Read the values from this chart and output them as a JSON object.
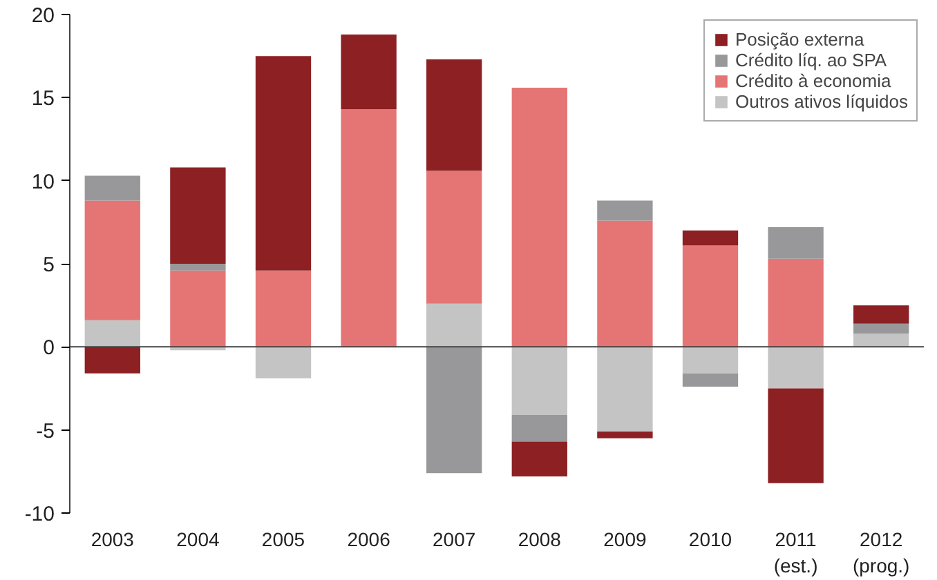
{
  "chart_data": {
    "type": "bar",
    "stacked": true,
    "categories": [
      "2003",
      "2004",
      "2005",
      "2006",
      "2007",
      "2008",
      "2009",
      "2010",
      "2011\n(est.)",
      "2012\n(prog.)"
    ],
    "series": [
      {
        "name": "Outros ativos líquidos",
        "color": "#c4c4c4",
        "values": [
          1.6,
          -0.2,
          -1.9,
          0,
          2.6,
          -4.1,
          -5.1,
          -1.6,
          -2.5,
          0.8
        ]
      },
      {
        "name": "Crédito à economia",
        "color": "#e57575",
        "values": [
          7.2,
          4.6,
          4.6,
          14.3,
          8.0,
          15.6,
          7.6,
          6.1,
          5.3,
          0
        ]
      },
      {
        "name": "Crédito líq. ao SPA",
        "color": "#98989b",
        "values": [
          1.5,
          0.4,
          0,
          0,
          -7.6,
          -1.6,
          1.2,
          -0.8,
          1.9,
          0.6
        ]
      },
      {
        "name": "Posição externa",
        "color": "#8c2023",
        "values": [
          -1.6,
          5.8,
          12.9,
          4.5,
          6.7,
          -2.1,
          -0.4,
          0.9,
          -5.7,
          1.1
        ]
      }
    ],
    "ylim": [
      -10,
      20
    ],
    "yticks": [
      -10,
      -5,
      0,
      5,
      10,
      15,
      20
    ],
    "ref_lines": [
      {
        "axis": "y",
        "value": 0,
        "color": "#444444"
      }
    ],
    "grid": false,
    "legend": "top right"
  }
}
